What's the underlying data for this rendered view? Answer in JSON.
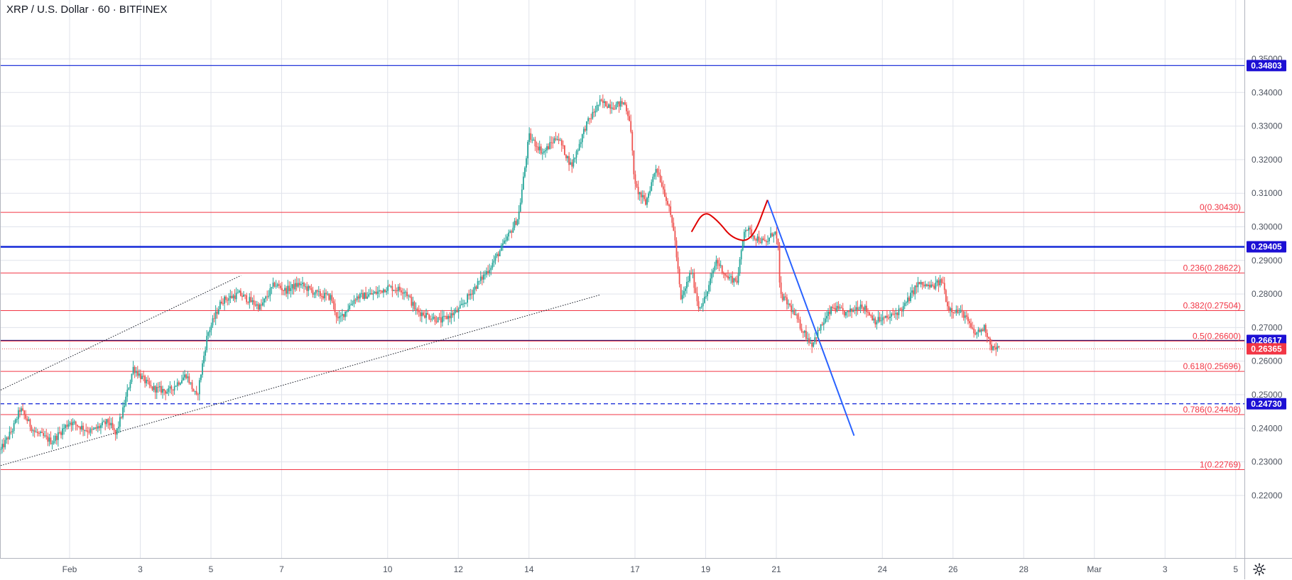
{
  "header": {
    "symbol_title": "XRP / U.S. Dollar · 60 · BITFINEX"
  },
  "colors": {
    "up": "#26a69a",
    "down": "#ef5350",
    "fib_line": "#f23645",
    "horizontal_blue": "#0a1fd6",
    "badge_blue": "#1c0fd4",
    "badge_red": "#f23645",
    "trend_blue": "#2962ff",
    "grid": "#e0e3eb",
    "axis_text": "#4c525e"
  },
  "icons": {
    "settings": "gear-icon"
  },
  "chart_data": {
    "type": "candlestick",
    "title": "XRP / U.S. Dollar · 60 · BITFINEX",
    "ylim": [
      0.2145,
      0.2535
    ],
    "y_ticks": [
      "0.22000",
      "0.23000",
      "0.24000",
      "0.25000",
      "0.26000",
      "0.27000",
      "0.28000",
      "0.29000",
      "0.30000",
      "0.31000",
      "0.32000",
      "0.33000",
      "0.34000",
      "0.35000"
    ],
    "y_tick_values": [
      0.22,
      0.23,
      0.24,
      0.25,
      0.26,
      0.27,
      0.28,
      0.29,
      0.3,
      0.31,
      0.32,
      0.33,
      0.34,
      0.35
    ],
    "x_ticks": [
      {
        "label": "Feb",
        "day": 0.0
      },
      {
        "label": "3",
        "day": 2.0
      },
      {
        "label": "5",
        "day": 4.0
      },
      {
        "label": "7",
        "day": 6.0
      },
      {
        "label": "10",
        "day": 9.0
      },
      {
        "label": "12",
        "day": 11.0
      },
      {
        "label": "14",
        "day": 13.0
      },
      {
        "label": "17",
        "day": 16.0
      },
      {
        "label": "19",
        "day": 18.0
      },
      {
        "label": "21",
        "day": 20.0
      },
      {
        "label": "24",
        "day": 23.0
      },
      {
        "label": "26",
        "day": 25.0
      },
      {
        "label": "28",
        "day": 27.0
      },
      {
        "label": "Mar",
        "day": 29.0
      },
      {
        "label": "3",
        "day": 31.0
      },
      {
        "label": "5",
        "day": 33.0
      }
    ],
    "price_badges": [
      {
        "label": "0.34803",
        "value": 0.34803,
        "color": "blue"
      },
      {
        "label": "0.29405",
        "value": 0.29405,
        "color": "blue"
      },
      {
        "label": "0.26617",
        "value": 0.26617,
        "color": "blue"
      },
      {
        "label": "0.26365",
        "value": 0.26365,
        "color": "red"
      },
      {
        "label": "0.24730",
        "value": 0.2473,
        "color": "blue"
      }
    ],
    "horizontal_levels": [
      {
        "value": 0.34803,
        "style": "solid-blue"
      },
      {
        "value": 0.29405,
        "style": "thick-blue"
      },
      {
        "value": 0.26617,
        "style": "solid-navy"
      },
      {
        "value": 0.26365,
        "style": "dotted-red"
      },
      {
        "value": 0.2473,
        "style": "dashed-blue"
      }
    ],
    "fib_levels": [
      {
        "label": "0(0.30430)",
        "value": 0.3043
      },
      {
        "label": "0.236(0.28622)",
        "value": 0.28622
      },
      {
        "label": "0.382(0.27504)",
        "value": 0.27504
      },
      {
        "label": "0.5(0.26600)",
        "value": 0.266
      },
      {
        "label": "0.618(0.25696)",
        "value": 0.25696
      },
      {
        "label": "0.786(0.24408)",
        "value": 0.24408
      },
      {
        "label": "1(0.22769)",
        "value": 0.22769
      }
    ],
    "trend_lines": [
      {
        "style": "dotted",
        "from": {
          "day": -1.95,
          "price": 0.2514
        },
        "to": {
          "day": 4.85,
          "price": 0.2855
        }
      },
      {
        "style": "dotted",
        "from": {
          "day": -1.95,
          "price": 0.2289
        },
        "to": {
          "day": 15.0,
          "price": 0.2797
        }
      },
      {
        "style": "blue-solid",
        "from": {
          "day": 19.75,
          "price": 0.308
        },
        "to": {
          "day": 22.2,
          "price": 0.2378
        }
      }
    ],
    "curve_annotation": {
      "color": "red",
      "points": [
        {
          "day": 17.6,
          "price": 0.2985
        },
        {
          "day": 17.95,
          "price": 0.3049
        },
        {
          "day": 18.35,
          "price": 0.3018
        },
        {
          "day": 18.75,
          "price": 0.2965
        },
        {
          "day": 19.3,
          "price": 0.2955
        },
        {
          "day": 19.75,
          "price": 0.308
        }
      ]
    },
    "path_points": [
      {
        "day": -1.95,
        "price": 0.2335
      },
      {
        "day": -1.6,
        "price": 0.24
      },
      {
        "day": -1.4,
        "price": 0.2458
      },
      {
        "day": -1.0,
        "price": 0.239
      },
      {
        "day": -0.5,
        "price": 0.236
      },
      {
        "day": 0.0,
        "price": 0.242
      },
      {
        "day": 0.6,
        "price": 0.239
      },
      {
        "day": 1.1,
        "price": 0.242
      },
      {
        "day": 1.3,
        "price": 0.238
      },
      {
        "day": 1.5,
        "price": 0.245
      },
      {
        "day": 1.8,
        "price": 0.258
      },
      {
        "day": 2.3,
        "price": 0.252
      },
      {
        "day": 2.8,
        "price": 0.251
      },
      {
        "day": 3.3,
        "price": 0.256
      },
      {
        "day": 3.6,
        "price": 0.249
      },
      {
        "day": 3.9,
        "price": 0.268
      },
      {
        "day": 4.3,
        "price": 0.278
      },
      {
        "day": 4.8,
        "price": 0.28
      },
      {
        "day": 5.4,
        "price": 0.276
      },
      {
        "day": 5.8,
        "price": 0.283
      },
      {
        "day": 6.1,
        "price": 0.281
      },
      {
        "day": 6.5,
        "price": 0.283
      },
      {
        "day": 7.0,
        "price": 0.28
      },
      {
        "day": 7.4,
        "price": 0.279
      },
      {
        "day": 7.6,
        "price": 0.272
      },
      {
        "day": 8.1,
        "price": 0.279
      },
      {
        "day": 8.6,
        "price": 0.28
      },
      {
        "day": 9.0,
        "price": 0.282
      },
      {
        "day": 9.5,
        "price": 0.281
      },
      {
        "day": 9.8,
        "price": 0.275
      },
      {
        "day": 10.5,
        "price": 0.272
      },
      {
        "day": 11.0,
        "price": 0.275
      },
      {
        "day": 11.4,
        "price": 0.281
      },
      {
        "day": 11.9,
        "price": 0.288
      },
      {
        "day": 12.3,
        "price": 0.295
      },
      {
        "day": 12.7,
        "price": 0.303
      },
      {
        "day": 13.0,
        "price": 0.327
      },
      {
        "day": 13.4,
        "price": 0.322
      },
      {
        "day": 13.8,
        "price": 0.327
      },
      {
        "day": 14.2,
        "price": 0.318
      },
      {
        "day": 14.6,
        "price": 0.33
      },
      {
        "day": 15.0,
        "price": 0.337
      },
      {
        "day": 15.4,
        "price": 0.336
      },
      {
        "day": 15.7,
        "price": 0.337
      },
      {
        "day": 15.85,
        "price": 0.332
      },
      {
        "day": 16.0,
        "price": 0.312
      },
      {
        "day": 16.3,
        "price": 0.307
      },
      {
        "day": 16.6,
        "price": 0.318
      },
      {
        "day": 16.9,
        "price": 0.308
      },
      {
        "day": 17.1,
        "price": 0.299
      },
      {
        "day": 17.3,
        "price": 0.278
      },
      {
        "day": 17.6,
        "price": 0.287
      },
      {
        "day": 17.8,
        "price": 0.276
      },
      {
        "day": 18.0,
        "price": 0.279
      },
      {
        "day": 18.3,
        "price": 0.29
      },
      {
        "day": 18.6,
        "price": 0.285
      },
      {
        "day": 18.9,
        "price": 0.284
      },
      {
        "day": 19.1,
        "price": 0.3
      },
      {
        "day": 19.4,
        "price": 0.297
      },
      {
        "day": 19.7,
        "price": 0.295
      },
      {
        "day": 19.95,
        "price": 0.299
      },
      {
        "day": 20.05,
        "price": 0.294
      },
      {
        "day": 20.1,
        "price": 0.28
      },
      {
        "day": 20.4,
        "price": 0.276
      },
      {
        "day": 20.7,
        "price": 0.27
      },
      {
        "day": 21.0,
        "price": 0.265
      },
      {
        "day": 21.3,
        "price": 0.271
      },
      {
        "day": 21.6,
        "price": 0.276
      },
      {
        "day": 22.0,
        "price": 0.274
      },
      {
        "day": 22.4,
        "price": 0.277
      },
      {
        "day": 22.8,
        "price": 0.272
      },
      {
        "day": 23.2,
        "price": 0.273
      },
      {
        "day": 23.6,
        "price": 0.276
      },
      {
        "day": 24.0,
        "price": 0.283
      },
      {
        "day": 24.4,
        "price": 0.282
      },
      {
        "day": 24.7,
        "price": 0.284
      },
      {
        "day": 24.85,
        "price": 0.276
      },
      {
        "day": 25.3,
        "price": 0.274
      },
      {
        "day": 25.6,
        "price": 0.268
      },
      {
        "day": 25.9,
        "price": 0.27
      },
      {
        "day": 26.1,
        "price": 0.264
      },
      {
        "day": 26.3,
        "price": 0.2636
      }
    ]
  }
}
